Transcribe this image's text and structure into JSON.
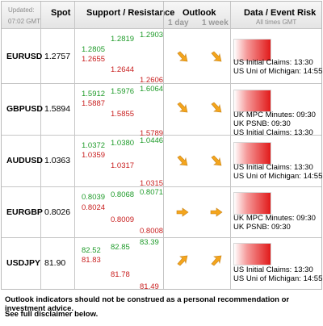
{
  "header": {
    "updated_label": "Updated:",
    "updated_time": "07:02 GMT",
    "spot": "Spot",
    "support_resistance": "Support / Resistance",
    "outlook": "Outlook",
    "outlook_1day": "1 day",
    "outlook_1week": "1 week",
    "data_event": "Data / Event Risk",
    "all_times": "All times GMT"
  },
  "rows": [
    {
      "symbol": "EURUSD",
      "spot": "1.2757",
      "s1": "1.2805",
      "s2": "1.2655",
      "s3": "1.2819",
      "s4": "1.2644",
      "s5": "1.2903",
      "s6": "1.2606",
      "day_arrow": "down-right-arrow-icon",
      "week_arrow": "down-right-arrow-icon",
      "events": [
        "US Initial Claims: 13:30",
        "US Uni of Michigan: 14:55"
      ]
    },
    {
      "symbol": "GBPUSD",
      "spot": "1.5894",
      "s1": "1.5912",
      "s2": "1.5887",
      "s3": "1.5976",
      "s4": "1.5855",
      "s5": "1.6064",
      "s6": "1.5789",
      "day_arrow": "down-right-arrow-icon",
      "week_arrow": "down-right-arrow-icon",
      "events": [
        "UK MPC Minutes: 09:30",
        "UK PSNB: 09:30",
        "US Initial Claims: 13:30"
      ]
    },
    {
      "symbol": "AUDUSD",
      "spot": "1.0363",
      "s1": "1.0372",
      "s2": "1.0359",
      "s3": "1.0380",
      "s4": "1.0317",
      "s5": "1.0446",
      "s6": "1.0315",
      "day_arrow": "down-right-arrow-icon",
      "week_arrow": "down-right-arrow-icon",
      "events": [
        "US Initial Claims: 13:30",
        "US Uni of Michigan: 14:55"
      ]
    },
    {
      "symbol": "EURGBP",
      "spot": "0.8026",
      "s1": "0.8039",
      "s2": "0.8024",
      "s3": "0.8068",
      "s4": "0.8009",
      "s5": "0.8071",
      "s6": "0.8008",
      "day_arrow": "right-arrow-icon",
      "week_arrow": "right-arrow-icon",
      "events": [
        "UK MPC Minutes: 09:30",
        "UK PSNB: 09:30"
      ]
    },
    {
      "symbol": "USDJPY",
      "spot": "81.90",
      "s1": "82.52",
      "s2": "81.83",
      "s3": "82.85",
      "s4": "81.78",
      "s5": "83.39",
      "s6": "81.49",
      "day_arrow": "up-right-arrow-icon",
      "week_arrow": "up-right-arrow-icon",
      "events": [
        "US Initial Claims: 13:30",
        "US Uni of Michigan: 14:55"
      ]
    }
  ],
  "footer": {
    "line1": "Outlook indicators should not be construed as a personal recommendation or investment advice.",
    "line2": "See full disclaimer below."
  },
  "colors": {
    "support": "#1f9b2a",
    "resistance": "#c81e1e",
    "arrow": "#f4a51c"
  }
}
